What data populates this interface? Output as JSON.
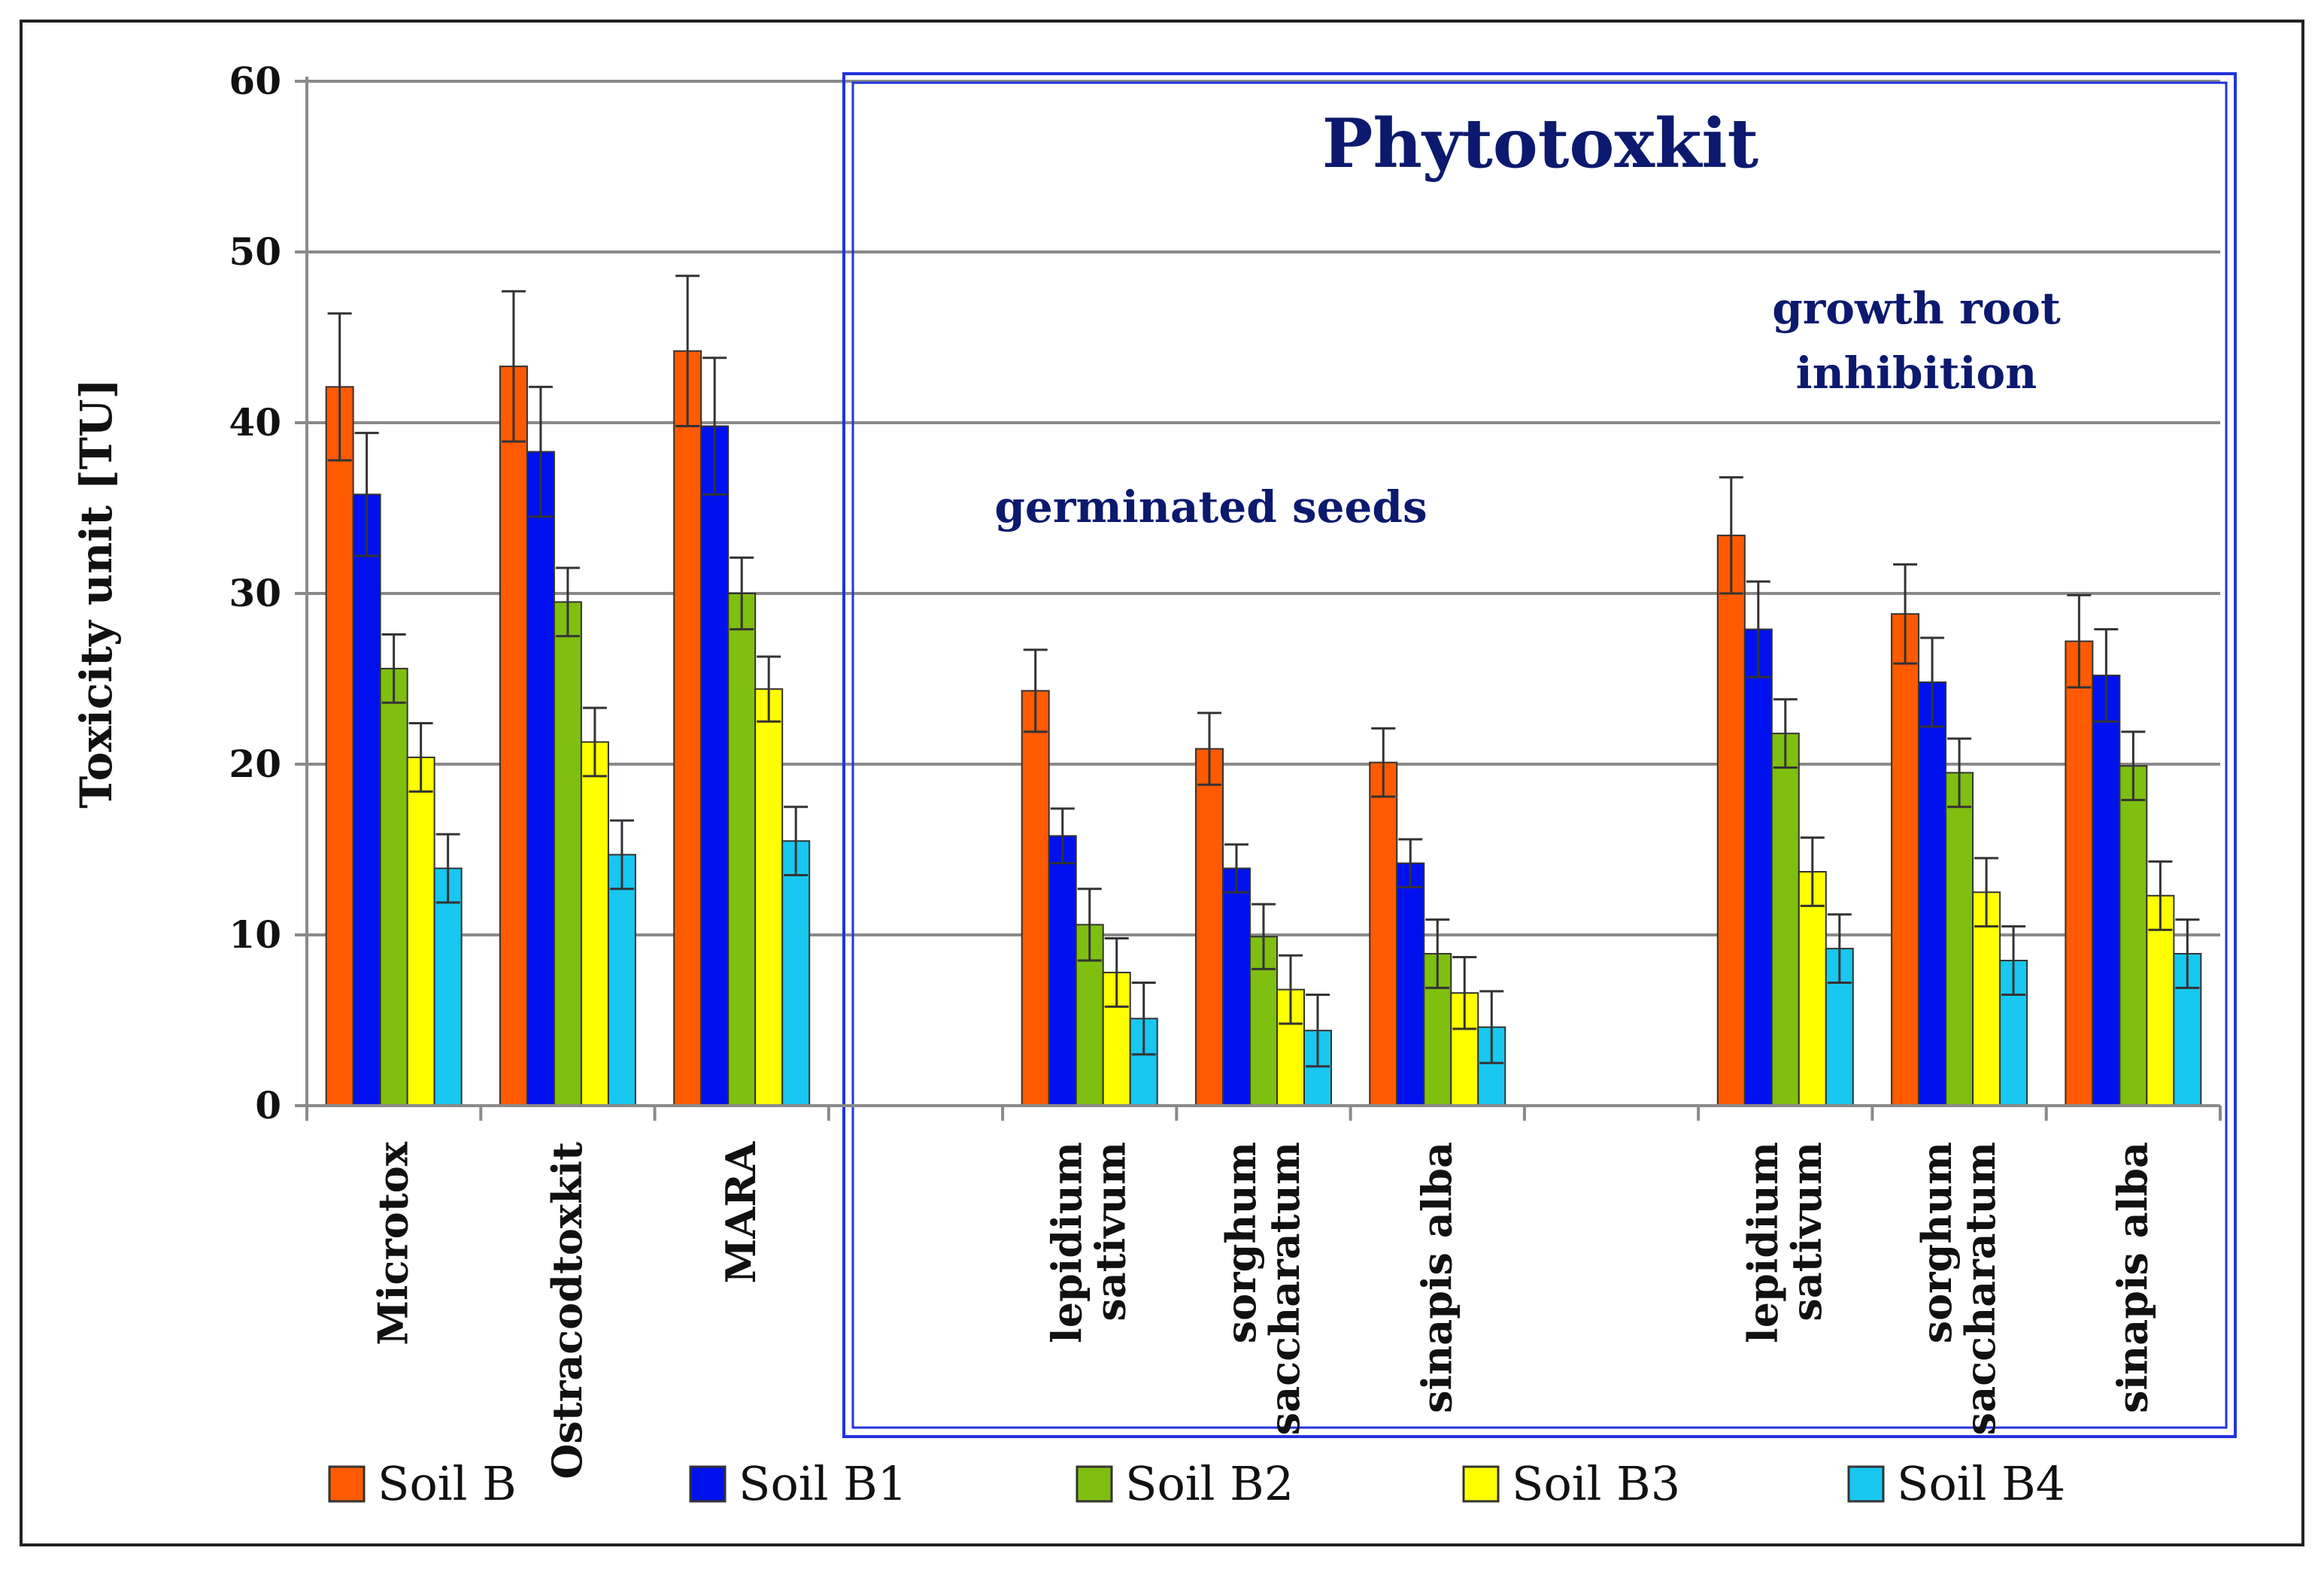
{
  "chart_data": {
    "type": "bar",
    "ylabel": "Toxicity unit [TU]",
    "ylim": [
      0,
      60
    ],
    "yticks": [
      0,
      10,
      20,
      30,
      40,
      50,
      60
    ],
    "grid": true,
    "legend_position": "bottom",
    "categories": [
      "Microtox",
      "Ostracodtoxkit",
      "MARA",
      "",
      "lepidium sativum",
      "sorghum saccharatum",
      "sinapis alba",
      "",
      "lepidium sativum",
      "sorghum saccharatum",
      "sinapis alba"
    ],
    "category_lines": [
      [
        "Microtox"
      ],
      [
        "Ostracodtoxkit"
      ],
      [
        "MARA"
      ],
      [],
      [
        "lepidium",
        "sativum"
      ],
      [
        "sorghum",
        "saccharatum"
      ],
      [
        "sinapis alba"
      ],
      [],
      [
        "lepidium",
        "sativum"
      ],
      [
        "sorghum",
        "saccharatum"
      ],
      [
        "sinapis alba"
      ]
    ],
    "series": [
      {
        "name": "Soil B",
        "color": "#ff5a00",
        "values": [
          42.1,
          43.3,
          44.2,
          null,
          24.3,
          20.9,
          20.1,
          null,
          33.4,
          28.8,
          27.2
        ],
        "errors": [
          4.3,
          4.4,
          4.4,
          null,
          2.4,
          2.1,
          2.0,
          null,
          3.4,
          2.9,
          2.7
        ]
      },
      {
        "name": "Soil B1",
        "color": "#0011ee",
        "values": [
          35.8,
          38.3,
          39.8,
          null,
          15.8,
          13.9,
          14.2,
          null,
          27.9,
          24.8,
          25.2
        ],
        "errors": [
          3.6,
          3.8,
          4.0,
          null,
          1.6,
          1.4,
          1.4,
          null,
          2.8,
          2.6,
          2.7
        ]
      },
      {
        "name": "Soil B2",
        "color": "#7fbf0f",
        "values": [
          25.6,
          29.5,
          30.0,
          null,
          10.6,
          9.9,
          8.9,
          null,
          21.8,
          19.5,
          19.9
        ],
        "errors": [
          2.0,
          2.0,
          2.1,
          null,
          2.1,
          1.9,
          2.0,
          null,
          2.0,
          2.0,
          2.0
        ]
      },
      {
        "name": "Soil B3",
        "color": "#ffff00",
        "values": [
          20.4,
          21.3,
          24.4,
          null,
          7.8,
          6.8,
          6.6,
          null,
          13.7,
          12.5,
          12.3
        ],
        "errors": [
          2.0,
          2.0,
          1.9,
          null,
          2.0,
          2.0,
          2.1,
          null,
          2.0,
          2.0,
          2.0
        ]
      },
      {
        "name": "Soil B4",
        "color": "#18c8f0",
        "values": [
          13.9,
          14.7,
          15.5,
          null,
          5.1,
          4.4,
          4.6,
          null,
          9.2,
          8.5,
          8.9
        ],
        "errors": [
          2.0,
          2.0,
          2.0,
          null,
          2.1,
          2.1,
          2.1,
          null,
          2.0,
          2.0,
          2.0
        ]
      }
    ],
    "annotations": {
      "box_title": "Phytotoxkit",
      "germinated_note": "germinated seeds",
      "growth_note": [
        "growth root",
        "inhibition"
      ]
    }
  }
}
